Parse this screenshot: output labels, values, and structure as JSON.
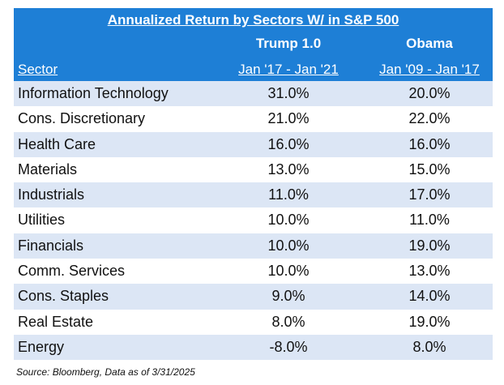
{
  "chart_data": {
    "type": "table",
    "title": "Annualized Return by Sectors W/ in S&P 500",
    "columns": [
      {
        "name": "Sector"
      },
      {
        "name": "Trump 1.0",
        "range": "Jan '17 - Jan '21"
      },
      {
        "name": "Obama",
        "range": "Jan '09 - Jan '17"
      }
    ],
    "rows": [
      {
        "sector": "Information Technology",
        "trump": "31.0%",
        "obama": "20.0%"
      },
      {
        "sector": "Cons. Discretionary",
        "trump": "21.0%",
        "obama": "22.0%"
      },
      {
        "sector": "Health Care",
        "trump": "16.0%",
        "obama": "16.0%"
      },
      {
        "sector": "Materials",
        "trump": "13.0%",
        "obama": "15.0%"
      },
      {
        "sector": "Industrials",
        "trump": "11.0%",
        "obama": "17.0%"
      },
      {
        "sector": "Utilities",
        "trump": "10.0%",
        "obama": "11.0%"
      },
      {
        "sector": "Financials",
        "trump": "10.0%",
        "obama": "19.0%"
      },
      {
        "sector": "Comm. Services",
        "trump": "10.0%",
        "obama": "13.0%"
      },
      {
        "sector": "Cons. Staples",
        "trump": "9.0%",
        "obama": "14.0%"
      },
      {
        "sector": "Real Estate",
        "trump": "8.0%",
        "obama": "19.0%"
      },
      {
        "sector": "Energy",
        "trump": "-8.0%",
        "obama": "8.0%"
      }
    ],
    "source": "Source: Bloomberg, Data as of 3/31/2025",
    "colors": {
      "header": "#1e7fd6",
      "band": "#dce6f5"
    }
  }
}
